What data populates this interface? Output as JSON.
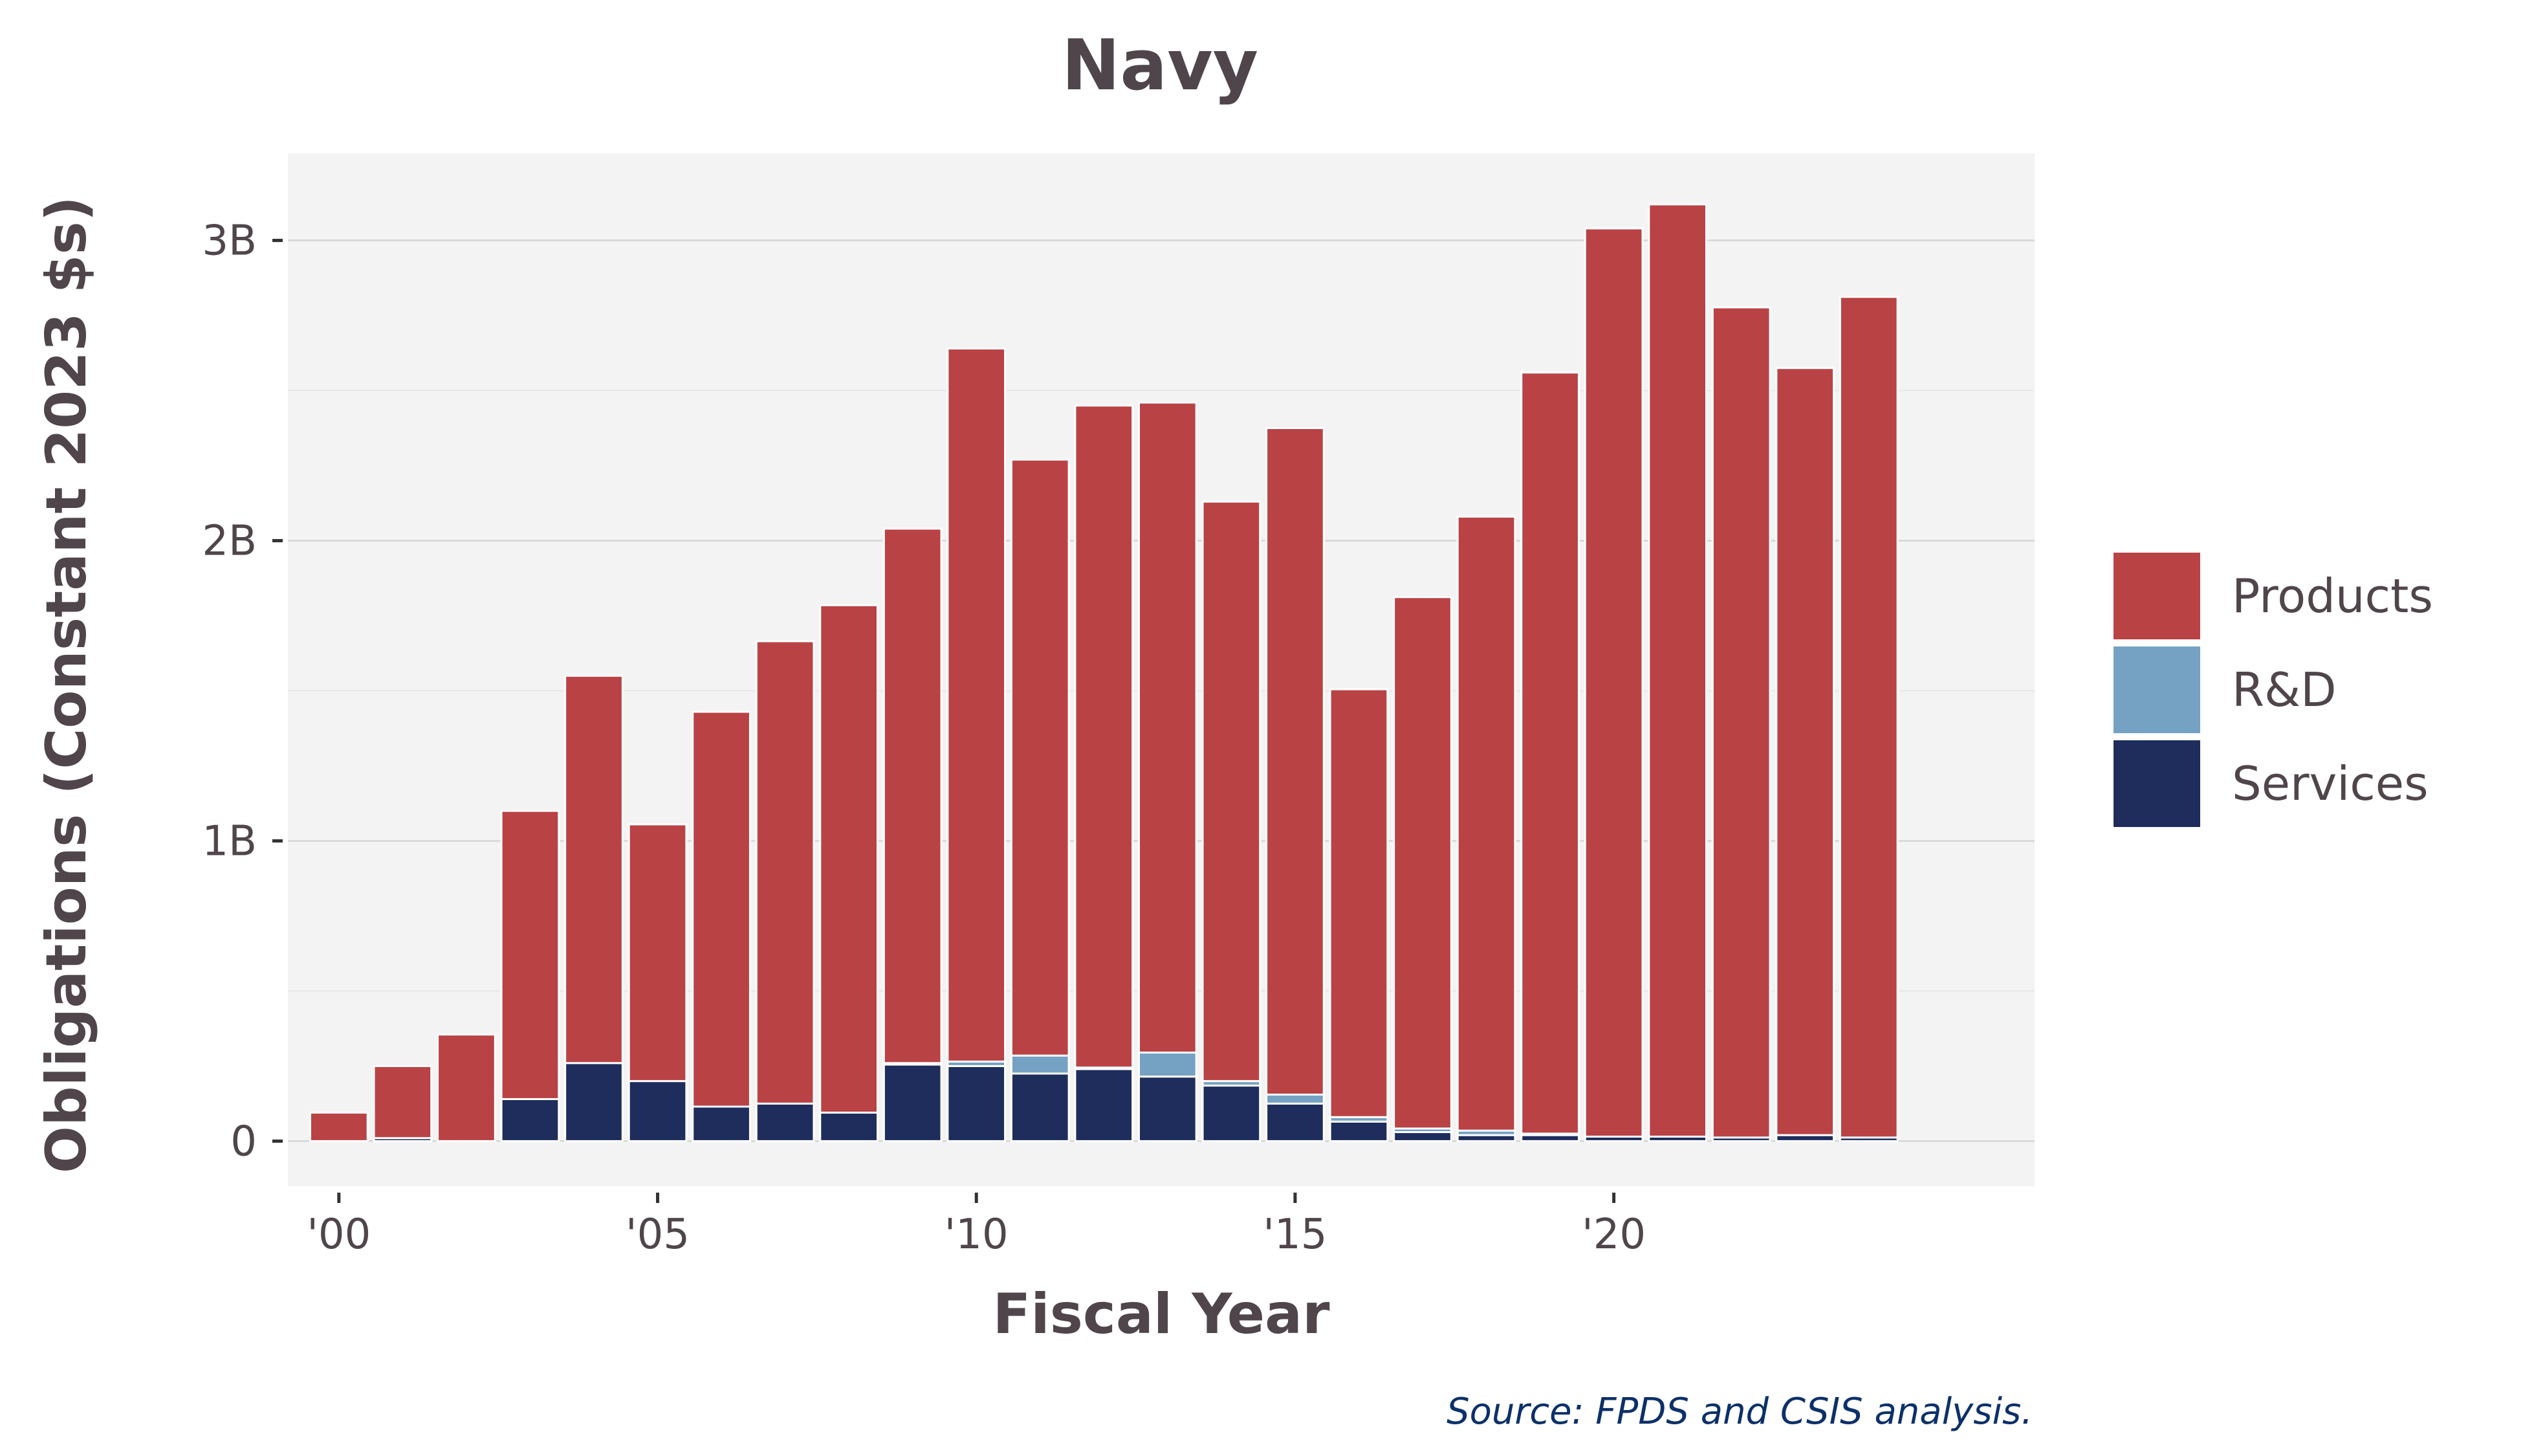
{
  "chart_data": {
    "type": "bar",
    "stacked": true,
    "title": "Navy",
    "xlabel": "Fiscal Year",
    "ylabel": "Obligations (Constant 2023 $s)",
    "source": "Source: FPDS and CSIS analysis.",
    "x": [
      2000,
      2001,
      2002,
      2003,
      2004,
      2005,
      2006,
      2007,
      2008,
      2009,
      2010,
      2011,
      2012,
      2013,
      2014,
      2015,
      2016,
      2017,
      2018,
      2019,
      2020,
      2021,
      2022,
      2023,
      2024
    ],
    "x_ticks": [
      {
        "value": 2000,
        "label": "'00"
      },
      {
        "value": 2005,
        "label": "'05"
      },
      {
        "value": 2010,
        "label": "'10"
      },
      {
        "value": 2015,
        "label": "'15"
      },
      {
        "value": 2020,
        "label": "'20"
      }
    ],
    "y_ticks": [
      {
        "value": 0,
        "label": "0"
      },
      {
        "value": 1000000000,
        "label": "1B"
      },
      {
        "value": 2000000000,
        "label": "2B"
      },
      {
        "value": 3000000000,
        "label": "3B"
      }
    ],
    "ylim": [
      -150000000,
      3290000000
    ],
    "xlim": [
      1999.2,
      2026.6
    ],
    "grid": true,
    "legend_position": "right",
    "series": [
      {
        "name": "Services",
        "color": "#1e2d5c",
        "values": [
          0,
          10000000,
          0,
          140000000,
          260000000,
          200000000,
          115000000,
          125000000,
          95000000,
          255000000,
          250000000,
          225000000,
          240000000,
          215000000,
          185000000,
          125000000,
          65000000,
          30000000,
          20000000,
          20000000,
          15000000,
          15000000,
          12000000,
          20000000,
          12000000
        ]
      },
      {
        "name": "R&D",
        "color": "#75a2c3",
        "values": [
          0,
          0,
          0,
          0,
          0,
          0,
          0,
          0,
          0,
          5000000,
          15000000,
          60000000,
          5000000,
          80000000,
          15000000,
          30000000,
          15000000,
          12000000,
          15000000,
          5000000,
          0,
          0,
          0,
          0,
          0
        ]
      },
      {
        "name": "Products",
        "color": "#b94245",
        "values": [
          95000000,
          240000000,
          355000000,
          960000000,
          1290000000,
          855000000,
          1315000000,
          1540000000,
          1690000000,
          1780000000,
          2375000000,
          1985000000,
          2205000000,
          2165000000,
          1930000000,
          2220000000,
          1425000000,
          1770000000,
          2045000000,
          2535000000,
          3025000000,
          3105000000,
          2765000000,
          2555000000,
          2800000000
        ]
      }
    ],
    "legend_order": [
      "Products",
      "R&D",
      "Services"
    ]
  }
}
